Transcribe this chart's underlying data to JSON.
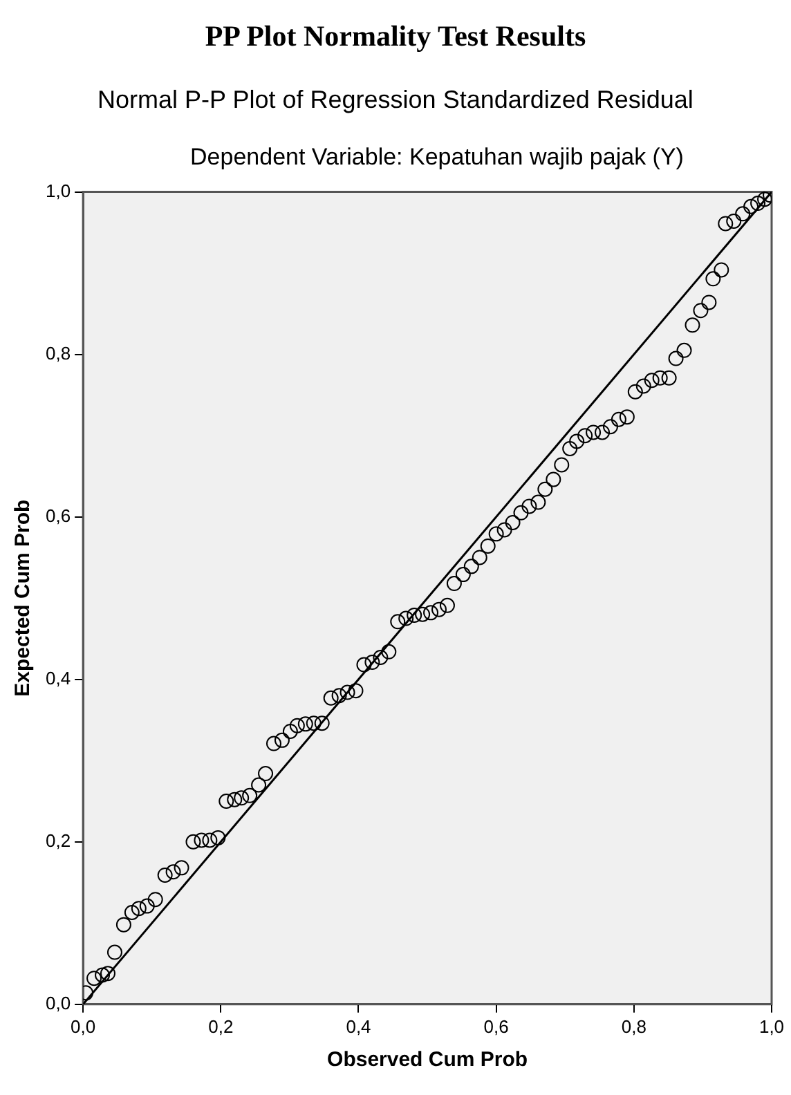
{
  "chart_data": {
    "type": "scatter",
    "title": "PP Plot Normality Test Results",
    "subtitle": "Normal P-P Plot of Regression Standardized Residual",
    "annotations": [
      "Dependent Variable: Kepatuhan wajib pajak (Y)"
    ],
    "xlabel": "Observed Cum Prob",
    "ylabel": "Expected Cum Prob",
    "xlim": [
      0,
      1
    ],
    "ylim": [
      0,
      1
    ],
    "xticks": [
      {
        "value": 0,
        "label": "0,0"
      },
      {
        "value": 0.2,
        "label": "0,2"
      },
      {
        "value": 0.4,
        "label": "0,4"
      },
      {
        "value": 0.6,
        "label": "0,6"
      },
      {
        "value": 0.8,
        "label": "0,8"
      },
      {
        "value": 1,
        "label": "1,0"
      }
    ],
    "yticks": [
      {
        "value": 0,
        "label": "0,0"
      },
      {
        "value": 0.2,
        "label": "0,2"
      },
      {
        "value": 0.4,
        "label": "0,4"
      },
      {
        "value": 0.6,
        "label": "0,6"
      },
      {
        "value": 0.8,
        "label": "0,8"
      },
      {
        "value": 1,
        "label": "1,0"
      }
    ],
    "grid": false,
    "legend": false,
    "marker": "circle",
    "series": [
      {
        "color": "#000000",
        "x": [
          0.004,
          0.016,
          0.028,
          0.036,
          0.046,
          0.059,
          0.071,
          0.081,
          0.093,
          0.105,
          0.119,
          0.131,
          0.143,
          0.16,
          0.172,
          0.184,
          0.196,
          0.208,
          0.22,
          0.23,
          0.242,
          0.255,
          0.265,
          0.277,
          0.289,
          0.301,
          0.311,
          0.323,
          0.335,
          0.347,
          0.36,
          0.372,
          0.384,
          0.396,
          0.408,
          0.42,
          0.432,
          0.444,
          0.457,
          0.469,
          0.481,
          0.493,
          0.505,
          0.517,
          0.529,
          0.539,
          0.552,
          0.564,
          0.576,
          0.588,
          0.6,
          0.612,
          0.624,
          0.636,
          0.648,
          0.661,
          0.671,
          0.683,
          0.695,
          0.707,
          0.717,
          0.729,
          0.741,
          0.754,
          0.766,
          0.778,
          0.79,
          0.802,
          0.814,
          0.826,
          0.838,
          0.851,
          0.861,
          0.873,
          0.885,
          0.897,
          0.909,
          0.915,
          0.927,
          0.933,
          0.945,
          0.958,
          0.97,
          0.98,
          0.99,
          0.998
        ],
        "values": [
          0.014,
          0.032,
          0.036,
          0.038,
          0.064,
          0.098,
          0.113,
          0.118,
          0.121,
          0.129,
          0.159,
          0.163,
          0.168,
          0.2,
          0.202,
          0.202,
          0.205,
          0.25,
          0.252,
          0.254,
          0.257,
          0.27,
          0.284,
          0.321,
          0.325,
          0.336,
          0.343,
          0.345,
          0.346,
          0.346,
          0.377,
          0.38,
          0.384,
          0.386,
          0.418,
          0.421,
          0.427,
          0.434,
          0.471,
          0.475,
          0.479,
          0.48,
          0.482,
          0.486,
          0.491,
          0.518,
          0.529,
          0.539,
          0.55,
          0.564,
          0.579,
          0.584,
          0.593,
          0.605,
          0.613,
          0.618,
          0.634,
          0.646,
          0.664,
          0.684,
          0.693,
          0.7,
          0.704,
          0.704,
          0.711,
          0.72,
          0.723,
          0.754,
          0.761,
          0.768,
          0.771,
          0.771,
          0.795,
          0.805,
          0.836,
          0.854,
          0.864,
          0.893,
          0.904,
          0.961,
          0.964,
          0.973,
          0.982,
          0.986,
          0.991,
          0.996
        ]
      },
      {
        "type": "line",
        "marker": "none",
        "color": "#000000",
        "x": [
          0,
          1
        ],
        "values": [
          0,
          1
        ]
      }
    ]
  }
}
